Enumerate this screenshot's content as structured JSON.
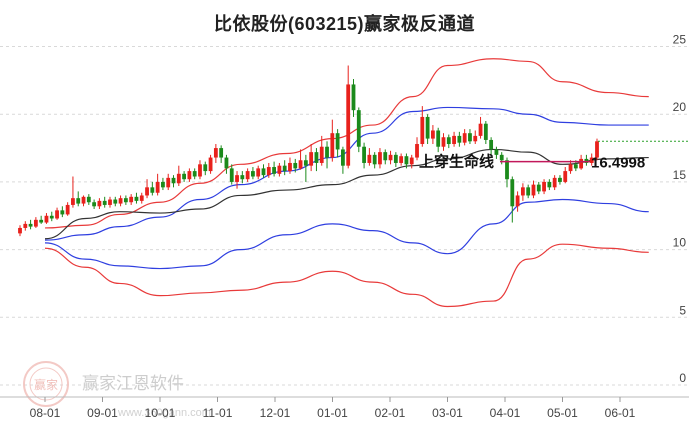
{
  "title": "比依股份(603215)赢家极反通道",
  "watermark": {
    "text": "赢家江恩软件",
    "url": "www.360gann.com",
    "logo_text": "赢家"
  },
  "chart_data": {
    "type": "candlestick",
    "title": "比依股份(603215)赢家极反通道",
    "x_ticks": [
      "08-01",
      "09-01",
      "10-01",
      "11-01",
      "12-01",
      "01-01",
      "02-01",
      "03-01",
      "04-01",
      "05-01",
      "06-01"
    ],
    "y_ticks": [
      0,
      5,
      10,
      15,
      20,
      25
    ],
    "ylim": [
      0,
      26
    ],
    "grid": "horizontal dashed",
    "annotations": [
      {
        "text": "上穿生命线",
        "y": 16.5
      },
      {
        "text": "16.4998",
        "y": 16.4998
      }
    ],
    "reference_line_y": 16.4998,
    "last_close_level": 18.0,
    "bands": {
      "upper_outer": [
        11.6,
        11.8,
        12.6,
        13.5,
        14.9,
        16.3,
        17.1,
        18.2,
        19.2,
        21.3,
        23.6,
        24.1,
        23.9,
        22.4,
        21.6,
        21.3
      ],
      "upper_inner": [
        10.7,
        11.1,
        11.7,
        12.4,
        13.7,
        14.8,
        15.8,
        16.8,
        18.6,
        20.2,
        20.5,
        20.4,
        20.0,
        19.4,
        19.2,
        19.2
      ],
      "mid_line": [
        10.8,
        12.3,
        12.8,
        12.7,
        13.0,
        14.0,
        14.4,
        14.8,
        15.5,
        16.2,
        16.7,
        17.4,
        17.2,
        16.3,
        16.7,
        16.8
      ],
      "lower_inner": [
        10.5,
        9.3,
        8.8,
        8.6,
        8.8,
        10.0,
        11.1,
        11.9,
        11.4,
        10.5,
        9.7,
        11.9,
        13.5,
        13.7,
        13.4,
        12.8
      ],
      "lower_outer": [
        10.1,
        8.7,
        7.5,
        6.6,
        6.8,
        7.0,
        7.6,
        8.4,
        7.6,
        6.7,
        5.8,
        6.2,
        9.3,
        10.4,
        10.1,
        9.8
      ]
    },
    "band_x_months": [
      0,
      0.7,
      1.3,
      2.0,
      2.7,
      3.4,
      4.2,
      5.0,
      5.7,
      6.4,
      7.0,
      7.8,
      8.4,
      9.0,
      9.8,
      10.5
    ],
    "candles": [
      {
        "o": 11.2,
        "c": 11.6,
        "h": 11.8,
        "l": 11.0
      },
      {
        "o": 11.6,
        "c": 11.9,
        "h": 12.1,
        "l": 11.4
      },
      {
        "o": 11.9,
        "c": 11.7,
        "h": 12.2,
        "l": 11.5
      },
      {
        "o": 11.7,
        "c": 12.2,
        "h": 12.4,
        "l": 11.6
      },
      {
        "o": 12.2,
        "c": 12.0,
        "h": 12.5,
        "l": 11.9
      },
      {
        "o": 12.0,
        "c": 12.5,
        "h": 12.7,
        "l": 11.9
      },
      {
        "o": 12.5,
        "c": 12.3,
        "h": 12.8,
        "l": 12.1
      },
      {
        "o": 12.3,
        "c": 12.9,
        "h": 13.1,
        "l": 12.2
      },
      {
        "o": 12.9,
        "c": 12.6,
        "h": 13.2,
        "l": 12.4
      },
      {
        "o": 12.6,
        "c": 13.3,
        "h": 13.5,
        "l": 12.5
      },
      {
        "o": 13.3,
        "c": 13.8,
        "h": 15.4,
        "l": 13.1
      },
      {
        "o": 13.8,
        "c": 13.4,
        "h": 14.3,
        "l": 13.2
      },
      {
        "o": 13.4,
        "c": 13.9,
        "h": 14.0,
        "l": 13.2
      },
      {
        "o": 13.9,
        "c": 13.5,
        "h": 14.1,
        "l": 13.3
      },
      {
        "o": 13.5,
        "c": 13.2,
        "h": 13.7,
        "l": 13.0
      },
      {
        "o": 13.2,
        "c": 13.6,
        "h": 13.8,
        "l": 13.0
      },
      {
        "o": 13.6,
        "c": 13.3,
        "h": 13.9,
        "l": 13.1
      },
      {
        "o": 13.3,
        "c": 13.7,
        "h": 13.9,
        "l": 13.1
      },
      {
        "o": 13.7,
        "c": 13.4,
        "h": 13.9,
        "l": 13.2
      },
      {
        "o": 13.4,
        "c": 13.8,
        "h": 14.0,
        "l": 13.2
      },
      {
        "o": 13.8,
        "c": 13.5,
        "h": 14.0,
        "l": 13.3
      },
      {
        "o": 13.5,
        "c": 13.9,
        "h": 14.1,
        "l": 13.3
      },
      {
        "o": 13.9,
        "c": 13.6,
        "h": 14.2,
        "l": 13.4
      },
      {
        "o": 13.6,
        "c": 14.0,
        "h": 14.2,
        "l": 13.4
      },
      {
        "o": 14.0,
        "c": 14.6,
        "h": 15.2,
        "l": 13.8
      },
      {
        "o": 14.6,
        "c": 14.2,
        "h": 15.0,
        "l": 14.0
      },
      {
        "o": 14.2,
        "c": 15.0,
        "h": 15.6,
        "l": 14.0
      },
      {
        "o": 15.0,
        "c": 14.6,
        "h": 15.3,
        "l": 14.4
      },
      {
        "o": 14.6,
        "c": 15.3,
        "h": 15.6,
        "l": 14.4
      },
      {
        "o": 15.3,
        "c": 14.9,
        "h": 15.5,
        "l": 14.6
      },
      {
        "o": 14.9,
        "c": 15.6,
        "h": 16.2,
        "l": 14.7
      },
      {
        "o": 15.6,
        "c": 15.2,
        "h": 15.8,
        "l": 15.0
      },
      {
        "o": 15.2,
        "c": 15.8,
        "h": 16.0,
        "l": 15.0
      },
      {
        "o": 15.8,
        "c": 15.4,
        "h": 16.0,
        "l": 15.2
      },
      {
        "o": 15.4,
        "c": 16.3,
        "h": 16.6,
        "l": 15.2
      },
      {
        "o": 16.3,
        "c": 15.8,
        "h": 16.5,
        "l": 15.5
      },
      {
        "o": 15.8,
        "c": 16.8,
        "h": 17.0,
        "l": 15.6
      },
      {
        "o": 16.8,
        "c": 17.5,
        "h": 17.8,
        "l": 16.4
      },
      {
        "o": 17.5,
        "c": 16.8,
        "h": 17.7,
        "l": 16.4
      },
      {
        "o": 16.8,
        "c": 16.0,
        "h": 17.0,
        "l": 15.6
      },
      {
        "o": 16.0,
        "c": 15.0,
        "h": 16.3,
        "l": 14.8
      },
      {
        "o": 15.0,
        "c": 15.5,
        "h": 15.8,
        "l": 14.5
      },
      {
        "o": 15.5,
        "c": 15.2,
        "h": 15.8,
        "l": 14.9
      },
      {
        "o": 15.2,
        "c": 15.8,
        "h": 16.0,
        "l": 15.0
      },
      {
        "o": 15.8,
        "c": 15.4,
        "h": 16.1,
        "l": 15.2
      },
      {
        "o": 15.4,
        "c": 16.0,
        "h": 16.2,
        "l": 15.2
      },
      {
        "o": 16.0,
        "c": 15.5,
        "h": 16.3,
        "l": 15.3
      },
      {
        "o": 15.5,
        "c": 16.1,
        "h": 16.4,
        "l": 15.3
      },
      {
        "o": 16.1,
        "c": 15.6,
        "h": 16.5,
        "l": 15.4
      },
      {
        "o": 15.6,
        "c": 16.2,
        "h": 16.4,
        "l": 15.4
      },
      {
        "o": 16.2,
        "c": 15.8,
        "h": 16.6,
        "l": 15.5
      },
      {
        "o": 15.8,
        "c": 16.4,
        "h": 16.8,
        "l": 15.6
      },
      {
        "o": 16.4,
        "c": 16.0,
        "h": 16.7,
        "l": 15.7
      },
      {
        "o": 16.0,
        "c": 16.6,
        "h": 17.4,
        "l": 15.9
      },
      {
        "o": 16.6,
        "c": 16.2,
        "h": 17.0,
        "l": 15.0
      },
      {
        "o": 16.2,
        "c": 17.2,
        "h": 17.8,
        "l": 15.8
      },
      {
        "o": 17.2,
        "c": 16.4,
        "h": 17.5,
        "l": 15.8
      },
      {
        "o": 16.4,
        "c": 17.6,
        "h": 18.4,
        "l": 16.2
      },
      {
        "o": 17.6,
        "c": 16.8,
        "h": 18.0,
        "l": 16.0
      },
      {
        "o": 16.8,
        "c": 18.6,
        "h": 19.6,
        "l": 16.5
      },
      {
        "o": 18.6,
        "c": 17.4,
        "h": 18.9,
        "l": 16.8
      },
      {
        "o": 17.4,
        "c": 16.2,
        "h": 17.6,
        "l": 15.6
      },
      {
        "o": 16.2,
        "c": 22.2,
        "h": 23.6,
        "l": 16.0
      },
      {
        "o": 22.2,
        "c": 20.3,
        "h": 22.6,
        "l": 19.8
      },
      {
        "o": 20.3,
        "c": 17.6,
        "h": 20.5,
        "l": 17.2
      },
      {
        "o": 17.6,
        "c": 16.4,
        "h": 17.9,
        "l": 16.0
      },
      {
        "o": 16.4,
        "c": 17.0,
        "h": 17.5,
        "l": 16.2
      },
      {
        "o": 17.0,
        "c": 16.3,
        "h": 17.2,
        "l": 16.0
      },
      {
        "o": 16.3,
        "c": 17.2,
        "h": 17.5,
        "l": 16.0
      },
      {
        "o": 17.2,
        "c": 16.6,
        "h": 17.4,
        "l": 16.3
      },
      {
        "o": 16.6,
        "c": 17.0,
        "h": 17.3,
        "l": 16.3
      },
      {
        "o": 17.0,
        "c": 16.4,
        "h": 17.2,
        "l": 16.1
      },
      {
        "o": 16.4,
        "c": 16.9,
        "h": 17.1,
        "l": 16.2
      },
      {
        "o": 16.9,
        "c": 16.3,
        "h": 17.1,
        "l": 16.0
      },
      {
        "o": 16.3,
        "c": 16.8,
        "h": 17.0,
        "l": 16.0
      },
      {
        "o": 16.8,
        "c": 17.8,
        "h": 18.3,
        "l": 16.6
      },
      {
        "o": 17.8,
        "c": 19.8,
        "h": 20.6,
        "l": 17.6
      },
      {
        "o": 19.8,
        "c": 18.2,
        "h": 20.0,
        "l": 17.8
      },
      {
        "o": 18.2,
        "c": 18.8,
        "h": 19.2,
        "l": 17.8
      },
      {
        "o": 18.8,
        "c": 17.6,
        "h": 19.0,
        "l": 17.2
      },
      {
        "o": 17.6,
        "c": 18.3,
        "h": 18.6,
        "l": 17.3
      },
      {
        "o": 18.3,
        "c": 17.8,
        "h": 18.5,
        "l": 17.5
      },
      {
        "o": 17.8,
        "c": 18.4,
        "h": 18.7,
        "l": 17.6
      },
      {
        "o": 18.4,
        "c": 17.9,
        "h": 18.7,
        "l": 17.6
      },
      {
        "o": 17.9,
        "c": 18.6,
        "h": 18.9,
        "l": 17.7
      },
      {
        "o": 18.6,
        "c": 18.0,
        "h": 18.9,
        "l": 17.8
      },
      {
        "o": 18.0,
        "c": 18.4,
        "h": 18.8,
        "l": 17.8
      },
      {
        "o": 18.4,
        "c": 19.3,
        "h": 19.8,
        "l": 18.2
      },
      {
        "o": 19.3,
        "c": 18.1,
        "h": 19.5,
        "l": 17.8
      },
      {
        "o": 18.1,
        "c": 17.4,
        "h": 18.3,
        "l": 17.0
      },
      {
        "o": 17.4,
        "c": 17.0,
        "h": 17.6,
        "l": 16.7
      },
      {
        "o": 17.0,
        "c": 16.6,
        "h": 17.2,
        "l": 16.3
      },
      {
        "o": 16.6,
        "c": 15.2,
        "h": 16.8,
        "l": 14.6
      },
      {
        "o": 15.2,
        "c": 13.2,
        "h": 15.4,
        "l": 12.0
      },
      {
        "o": 13.2,
        "c": 14.0,
        "h": 14.3,
        "l": 12.8
      },
      {
        "o": 14.0,
        "c": 14.6,
        "h": 14.9,
        "l": 13.6
      },
      {
        "o": 14.6,
        "c": 14.0,
        "h": 14.8,
        "l": 13.8
      },
      {
        "o": 14.0,
        "c": 14.8,
        "h": 15.1,
        "l": 13.8
      },
      {
        "o": 14.8,
        "c": 14.3,
        "h": 15.0,
        "l": 14.1
      },
      {
        "o": 14.3,
        "c": 15.0,
        "h": 15.2,
        "l": 14.1
      },
      {
        "o": 15.0,
        "c": 14.6,
        "h": 15.2,
        "l": 14.4
      },
      {
        "o": 14.6,
        "c": 15.3,
        "h": 15.5,
        "l": 14.4
      },
      {
        "o": 15.3,
        "c": 15.0,
        "h": 15.5,
        "l": 14.8
      },
      {
        "o": 15.0,
        "c": 15.8,
        "h": 16.1,
        "l": 14.9
      },
      {
        "o": 15.8,
        "c": 16.3,
        "h": 16.6,
        "l": 15.6
      },
      {
        "o": 16.3,
        "c": 16.0,
        "h": 16.6,
        "l": 15.8
      },
      {
        "o": 16.0,
        "c": 16.7,
        "h": 17.0,
        "l": 15.9
      },
      {
        "o": 16.7,
        "c": 16.4,
        "h": 17.0,
        "l": 16.2
      },
      {
        "o": 16.4,
        "c": 16.8,
        "h": 17.1,
        "l": 16.2
      },
      {
        "o": 16.8,
        "c": 18.0,
        "h": 18.2,
        "l": 16.6
      }
    ]
  }
}
